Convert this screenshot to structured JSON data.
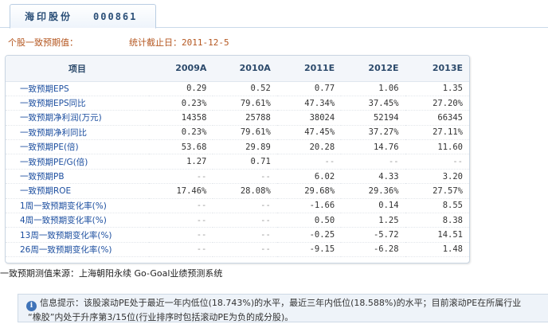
{
  "tab": {
    "name": "海印股份",
    "code": "000861"
  },
  "subheader": {
    "title": "个股一致预期值：",
    "date_label": "统计截止日：",
    "date_value": "2011-12-5"
  },
  "table": {
    "headers": [
      "项目",
      "2009A",
      "2010A",
      "2011E",
      "2012E",
      "2013E"
    ],
    "rows": [
      {
        "label": "一致预期EPS",
        "values": [
          "0.29",
          "0.52",
          "0.77",
          "1.06",
          "1.35"
        ]
      },
      {
        "label": "一致预期EPS同比",
        "values": [
          "0.23%",
          "79.61%",
          "47.34%",
          "37.45%",
          "27.20%"
        ]
      },
      {
        "label": "一致预期净利润(万元)",
        "values": [
          "14358",
          "25788",
          "38024",
          "52194",
          "66345"
        ]
      },
      {
        "label": "一致预期净利同比",
        "values": [
          "0.23%",
          "79.61%",
          "47.45%",
          "37.27%",
          "27.11%"
        ]
      },
      {
        "label": "一致预期PE(倍)",
        "values": [
          "53.68",
          "29.89",
          "20.28",
          "14.76",
          "11.60"
        ]
      },
      {
        "label": "一致预期PE/G(倍)",
        "values": [
          "1.27",
          "0.71",
          "--",
          "--",
          "--"
        ]
      },
      {
        "label": "一致预期PB",
        "values": [
          "--",
          "--",
          "6.02",
          "4.33",
          "3.20"
        ]
      },
      {
        "label": "一致预期ROE",
        "values": [
          "17.46%",
          "28.08%",
          "29.68%",
          "29.36%",
          "27.57%"
        ]
      },
      {
        "label": "1周一致预期变化率(%)",
        "values": [
          "--",
          "--",
          "-1.66",
          "0.14",
          "8.55"
        ]
      },
      {
        "label": "4周一致预期变化率(%)",
        "values": [
          "--",
          "--",
          "0.50",
          "1.25",
          "8.38"
        ]
      },
      {
        "label": "13周一致预期变化率(%)",
        "values": [
          "--",
          "--",
          "-0.25",
          "-5.72",
          "14.51"
        ]
      },
      {
        "label": "26周一致预期变化率(%)",
        "values": [
          "--",
          "--",
          "-9.15",
          "-6.28",
          "1.48"
        ]
      }
    ]
  },
  "source": "一致预期测值来源：上海朝阳永续 Go-Goal业绩预测系统",
  "notice": {
    "icon": "info-icon",
    "line1": "信息提示：该股滚动PE处于最近一年内低位(18.743%)的水平，最近三年内低位(18.588%)的水平；目前滚动PE在所属行业",
    "line2": "“橡胶”内处于升序第3/15位(行业排序时包括滚动PE为负的成分股)。"
  },
  "colors": {
    "label_blue": "#1d4fa0",
    "accent_orange": "#b4561f",
    "header_text": "#2c4a6b"
  }
}
